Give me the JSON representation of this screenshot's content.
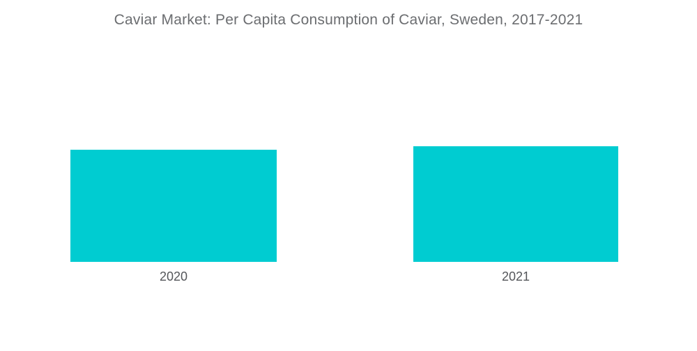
{
  "colors": {
    "bar": "#00ccd1",
    "title_text": "#6b6d70",
    "label_text": "#54565a",
    "background": "#ffffff"
  },
  "chart_data": {
    "type": "bar",
    "title": "Caviar Market: Per Capita Consumption of Caviar, Sweden, 2017-2021",
    "categories": [
      "2020",
      "2021"
    ],
    "values": [
      161,
      166
    ],
    "value_note": "no numeric axis or data labels shown; values are relative bar heights in px",
    "xlabel": "",
    "ylabel": "",
    "ylim": [
      0,
      296
    ],
    "grid": false,
    "legend": false,
    "axes_visible": false,
    "bar_color": "#00ccd1"
  }
}
